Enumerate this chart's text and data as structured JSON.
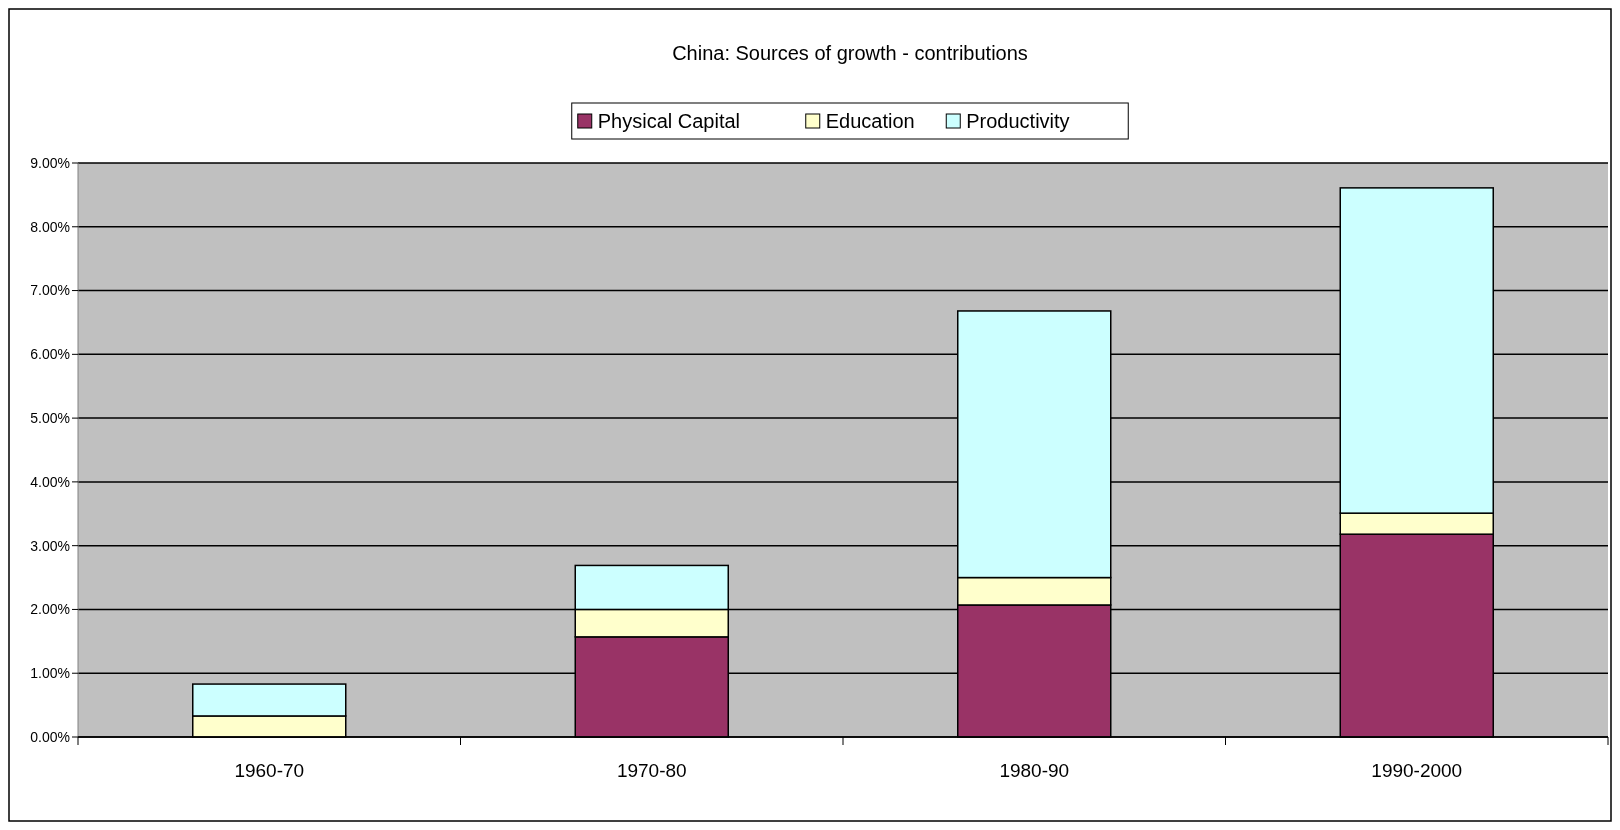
{
  "chart_data": {
    "type": "bar",
    "title": "China: Sources of growth - contributions",
    "categories": [
      "1960-70",
      "1970-80",
      "1980-90",
      "1990-2000"
    ],
    "stacked": true,
    "series": [
      {
        "name": "Physical Capital",
        "color": "#993366",
        "values": [
          0,
          1.57,
          2.07,
          3.18
        ]
      },
      {
        "name": "Education",
        "color": "#ffffcc",
        "values": [
          0.33,
          0.43,
          0.43,
          0.33
        ]
      },
      {
        "name": "Productivity",
        "color": "#ccffff",
        "values": [
          0.5,
          0.69,
          4.18,
          5.1
        ]
      }
    ],
    "ylim": [
      0,
      9
    ],
    "yticks": [
      {
        "value": 0,
        "label": "0.00%"
      },
      {
        "value": 1,
        "label": "1.00%"
      },
      {
        "value": 2,
        "label": "2.00%"
      },
      {
        "value": 3,
        "label": "3.00%"
      },
      {
        "value": 4,
        "label": "4.00%"
      },
      {
        "value": 5,
        "label": "5.00%"
      },
      {
        "value": 6,
        "label": "6.00%"
      },
      {
        "value": 7,
        "label": "7.00%"
      },
      {
        "value": 8,
        "label": "8.00%"
      },
      {
        "value": 9,
        "label": "9.00%"
      }
    ],
    "grid": "y",
    "legend": "top"
  }
}
